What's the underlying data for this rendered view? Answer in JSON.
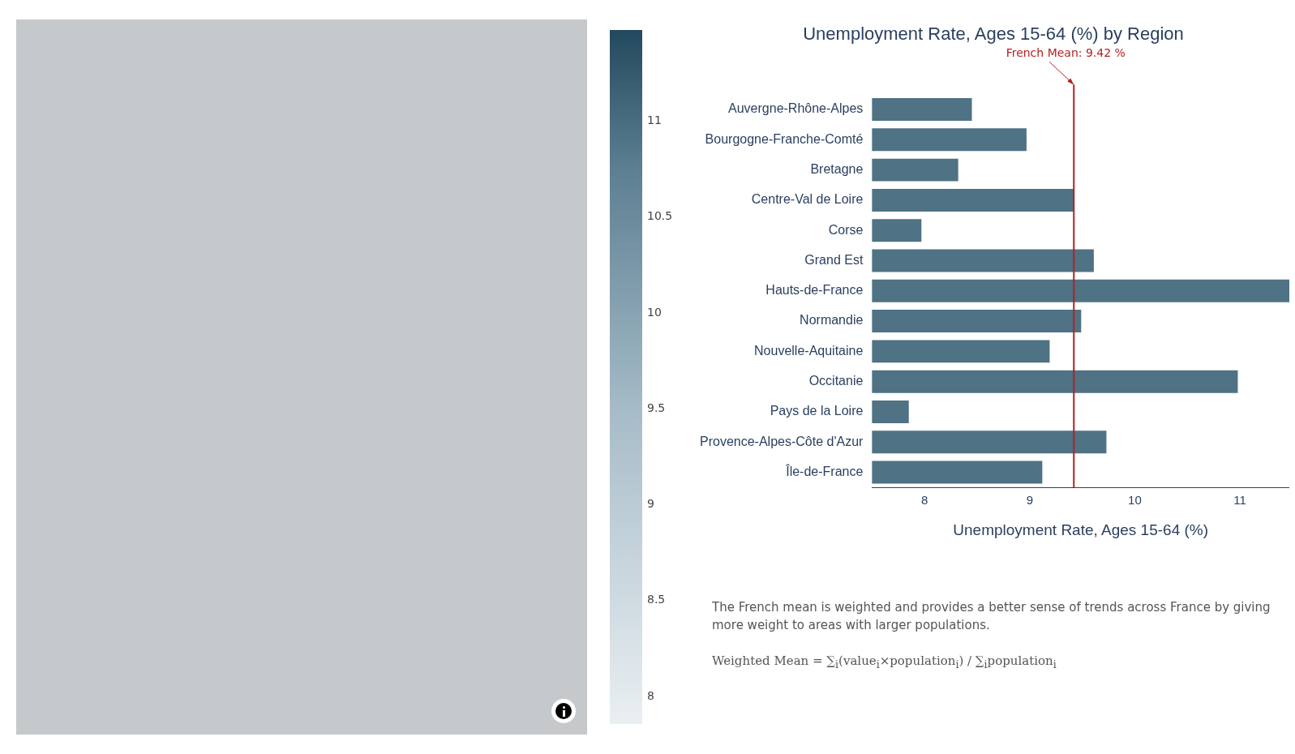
{
  "chart_data": {
    "type": "bar",
    "orientation": "horizontal",
    "title": "Unemployment Rate, Ages 15-64 (%) by Region",
    "xlabel": "Unemployment Rate, Ages 15-64 (%)",
    "categories": [
      "Auvergne-Rhône-Alpes",
      "Bourgogne-Franche-Comté",
      "Bretagne",
      "Centre-Val de Loire",
      "Corse",
      "Grand Est",
      "Hauts-de-France",
      "Normandie",
      "Nouvelle-Aquitaine",
      "Occitanie",
      "Pays de la Loire",
      "Provence-Alpes-Côte d'Azur",
      "Île-de-France"
    ],
    "values": [
      8.45,
      8.97,
      8.32,
      9.42,
      7.97,
      9.61,
      11.47,
      9.49,
      9.19,
      10.98,
      7.85,
      9.73,
      9.12
    ],
    "color": "#4f7284",
    "xlim": [
      7.5,
      11.47
    ],
    "xticks": [
      8,
      9,
      10,
      11
    ],
    "grid": false,
    "clim": [
      7.85,
      11.47
    ],
    "cticks": [
      8,
      8.5,
      9,
      9.5,
      10,
      10.5,
      11
    ],
    "ref_lines": [
      {
        "axis": "x",
        "value": 9.42,
        "label": "French Mean: 9.42 %",
        "color": "#b22222"
      }
    ],
    "annotations": [
      "The French mean is weighted and provides a better sense of trends across France by giving more weight to areas with larger populations.",
      "Weighted Mean = ∑$_{i}$(value$_{i}$×population$_{i}$) / ∑$_{i}$population$_{i}$"
    ]
  }
}
